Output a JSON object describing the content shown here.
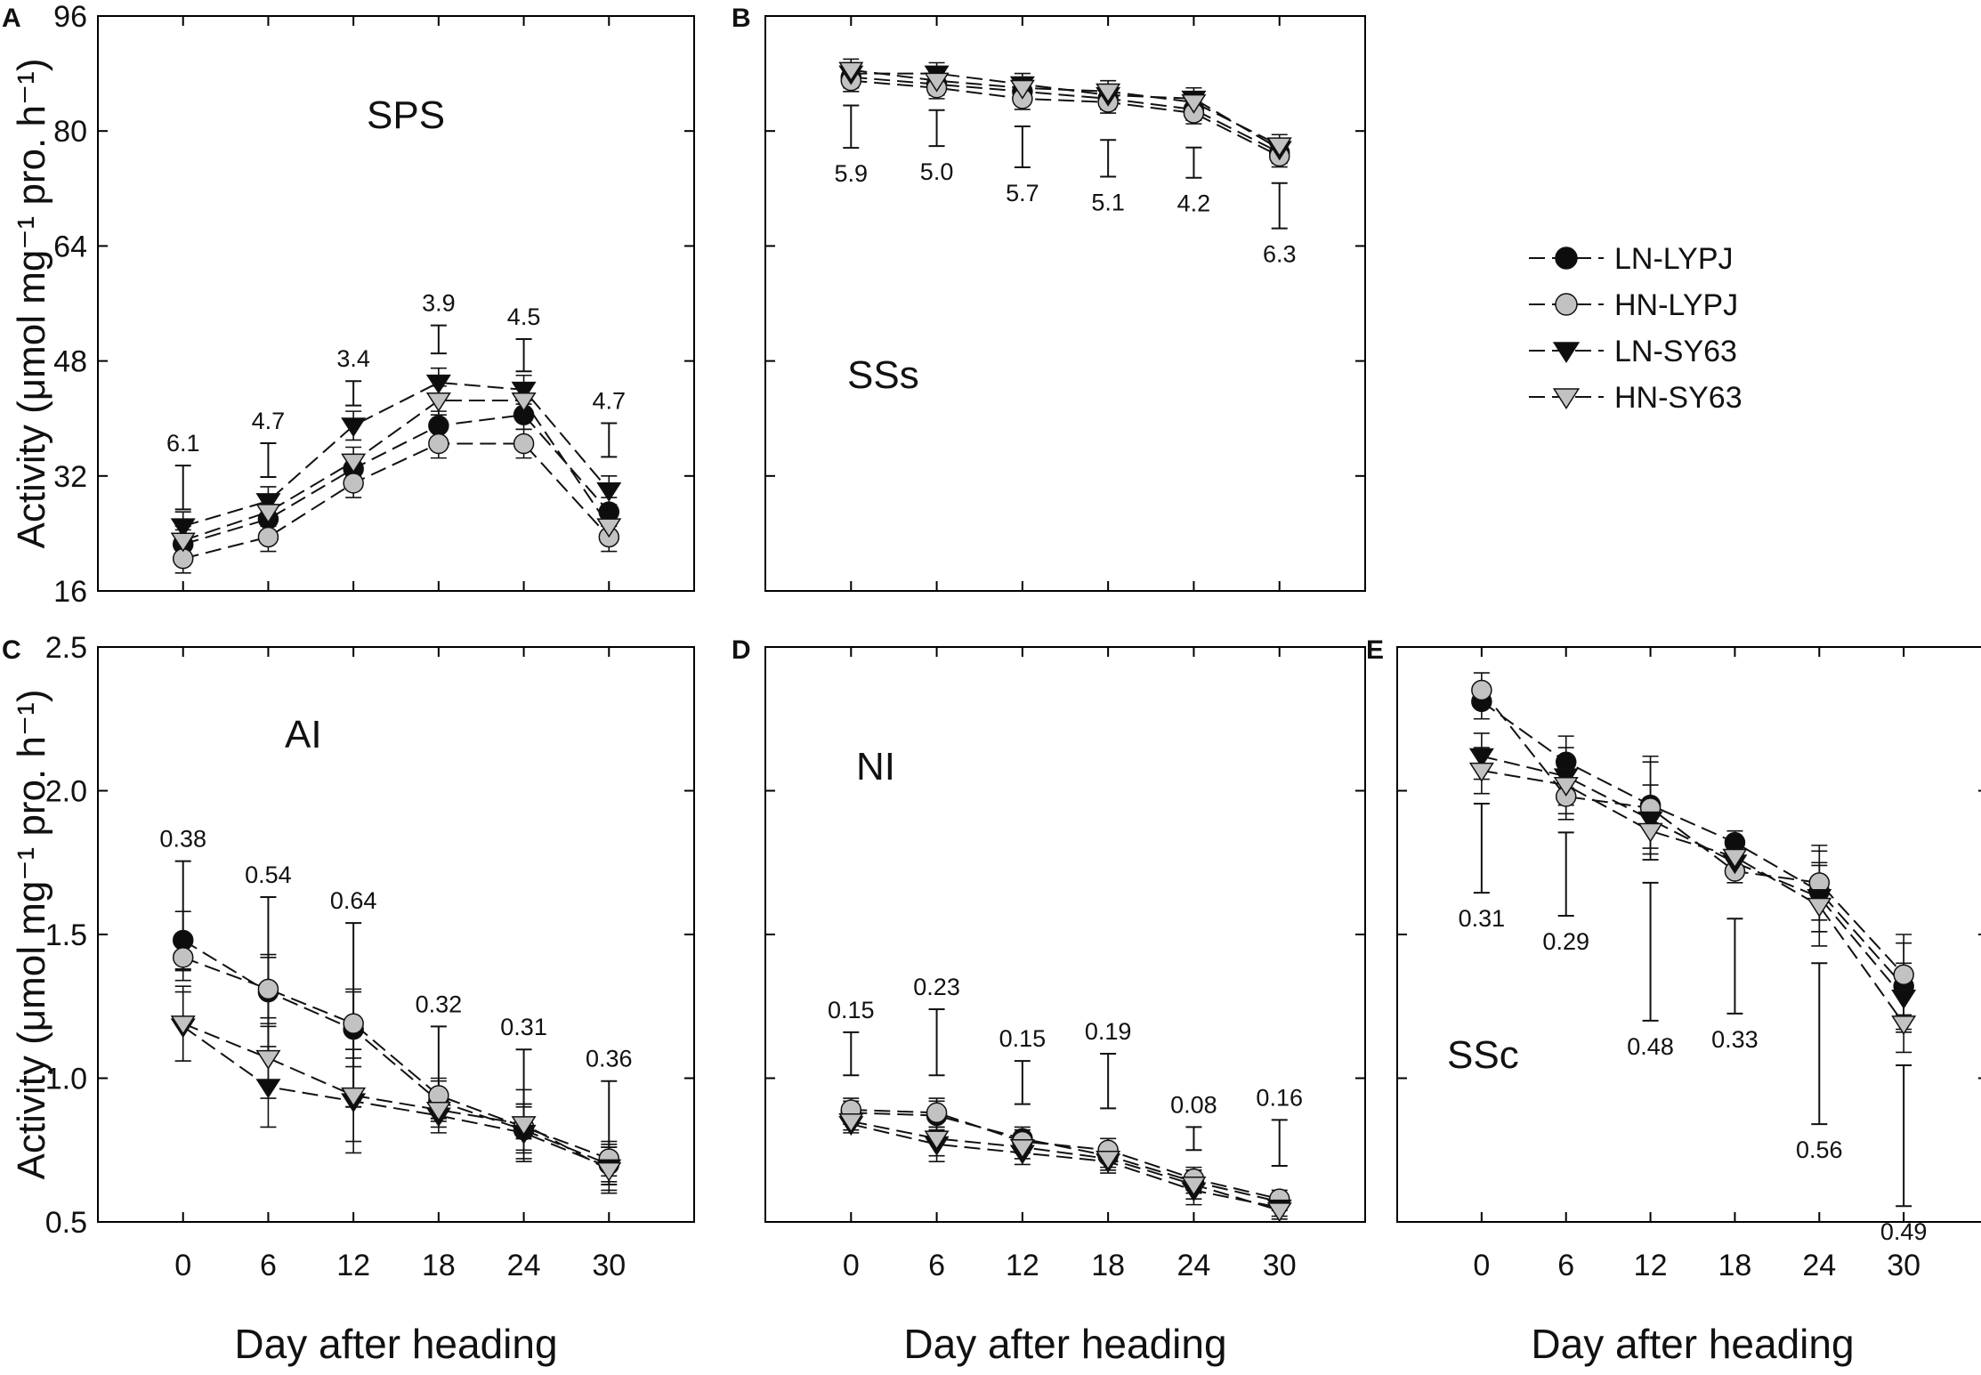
{
  "chart_data": {
    "type": "line",
    "x": [
      0,
      6,
      12,
      18,
      24,
      30
    ],
    "xlabel": "Day after heading",
    "ylabel": "Activity (μmol mg⁻¹ pro. h⁻¹)",
    "legend": {
      "placement": "right of top row",
      "entries": [
        {
          "name": "LN-LYPJ",
          "marker": "circle",
          "color": "#0d0d0d"
        },
        {
          "name": "HN-LYPJ",
          "marker": "circle",
          "color": "#c2c2c2"
        },
        {
          "name": "LN-SY63",
          "marker": "triangle-down",
          "color": "#0d0d0d"
        },
        {
          "name": "HN-SY63",
          "marker": "triangle-down",
          "color": "#c2c2c2"
        }
      ]
    },
    "panels": [
      {
        "letter": "A",
        "label": "SPS",
        "ylim": [
          16,
          96
        ],
        "yticks": [
          16,
          32,
          48,
          64,
          80,
          96
        ],
        "ytick_labels": [
          "16",
          "32",
          "48",
          "64",
          "80",
          "96"
        ],
        "show_xticklabels": false,
        "show_yticklabels": true,
        "show_xlabel": false,
        "show_ylabel": true,
        "series": [
          {
            "name": "LN-LYPJ",
            "values": [
              22.5,
              26,
              33,
              39,
              40.5,
              27
            ]
          },
          {
            "name": "HN-LYPJ",
            "values": [
              20.5,
              23.5,
              31,
              36.5,
              36.5,
              23.5
            ]
          },
          {
            "name": "LN-SY63",
            "values": [
              25,
              28.5,
              39,
              45,
              44,
              30
            ]
          },
          {
            "name": "HN-SY63",
            "values": [
              23,
              27,
              34,
              42.5,
              42.5,
              25
            ]
          }
        ],
        "errors": [
          [
            2,
            2,
            2,
            2,
            2,
            2
          ],
          [
            2,
            2,
            2,
            2,
            2,
            2
          ],
          [
            2,
            2,
            2,
            2,
            2,
            2
          ],
          [
            2,
            2,
            2,
            2,
            2,
            2
          ]
        ],
        "lsd": {
          "labels": [
            "6.1",
            "4.7",
            "3.4",
            "3.9",
            "4.5",
            "4.7"
          ],
          "halves": [
            3.05,
            2.35,
            1.7,
            1.95,
            2.25,
            2.35
          ],
          "centers": [
            30.4,
            34.2,
            43.5,
            51,
            48.8,
            37
          ]
        }
      },
      {
        "letter": "B",
        "label": "SSs",
        "ylim": [
          16,
          96
        ],
        "yticks": [
          16,
          32,
          48,
          64,
          80,
          96
        ],
        "ytick_labels": [
          "16",
          "32",
          "48",
          "64",
          "80",
          "96"
        ],
        "show_xticklabels": false,
        "show_yticklabels": false,
        "show_xlabel": false,
        "show_ylabel": false,
        "series": [
          {
            "name": "LN-LYPJ",
            "values": [
              87.5,
              86.5,
              85.5,
              84.5,
              83,
              77
            ]
          },
          {
            "name": "HN-LYPJ",
            "values": [
              87,
              86,
              84.5,
              84,
              82.5,
              76.5
            ]
          },
          {
            "name": "LN-SY63",
            "values": [
              88,
              88,
              86.5,
              85,
              84.5,
              77.5
            ]
          },
          {
            "name": "HN-SY63",
            "values": [
              88.5,
              87,
              86,
              85.5,
              84,
              78
            ]
          }
        ],
        "errors": [
          [
            1.5,
            1.5,
            1.5,
            1.5,
            1.5,
            1.5
          ],
          [
            1.5,
            1.5,
            1.5,
            1.5,
            1.5,
            1.5
          ],
          [
            1.5,
            1.5,
            1.5,
            1.5,
            1.5,
            1.5
          ],
          [
            1.5,
            1.5,
            1.5,
            1.5,
            1.5,
            1.5
          ]
        ],
        "lsd": {
          "labels": [
            "5.9",
            "5.0",
            "5.7",
            "5.1",
            "4.2",
            "6.3"
          ],
          "halves": [
            2.95,
            2.5,
            2.85,
            2.55,
            2.1,
            3.15
          ],
          "centers": [
            80.6,
            80.4,
            77.8,
            76.2,
            75.6,
            69.6
          ]
        }
      },
      {
        "letter": "C",
        "label": "AI",
        "ylim": [
          0.5,
          2.5
        ],
        "yticks": [
          0.5,
          1.0,
          1.5,
          2.0,
          2.5
        ],
        "ytick_labels": [
          "0.5",
          "1.0",
          "1.5",
          "2.0",
          "2.5"
        ],
        "show_xticklabels": true,
        "show_yticklabels": true,
        "show_xlabel": true,
        "show_ylabel": true,
        "series": [
          {
            "name": "LN-LYPJ",
            "values": [
              1.48,
              1.3,
              1.17,
              0.92,
              0.82,
              0.7
            ]
          },
          {
            "name": "HN-LYPJ",
            "values": [
              1.42,
              1.31,
              1.19,
              0.94,
              0.83,
              0.72
            ]
          },
          {
            "name": "LN-SY63",
            "values": [
              1.18,
              0.97,
              0.92,
              0.87,
              0.81,
              0.69
            ]
          },
          {
            "name": "HN-SY63",
            "values": [
              1.19,
              1.07,
              0.94,
              0.89,
              0.84,
              0.68
            ]
          }
        ],
        "errors": [
          [
            0.1,
            0.12,
            0.13,
            0.07,
            0.08,
            0.06
          ],
          [
            0.08,
            0.12,
            0.12,
            0.06,
            0.08,
            0.06
          ],
          [
            0.12,
            0.14,
            0.18,
            0.06,
            0.1,
            0.08
          ],
          [
            0.13,
            0.14,
            0.16,
            0.06,
            0.12,
            0.08
          ]
        ],
        "lsd": {
          "labels": [
            "0.38",
            "0.54",
            "0.64",
            "0.32",
            "0.31",
            "0.36"
          ],
          "halves": [
            0.19,
            0.27,
            0.32,
            0.16,
            0.155,
            0.18
          ],
          "centers": [
            1.565,
            1.36,
            1.22,
            1.02,
            0.945,
            0.81
          ]
        }
      },
      {
        "letter": "D",
        "label": "NI",
        "ylim": [
          0.5,
          2.5
        ],
        "yticks": [
          0.5,
          1.0,
          1.5,
          2.0,
          2.5
        ],
        "ytick_labels": [
          "0.5",
          "1.0",
          "1.5",
          "2.0",
          "2.5"
        ],
        "show_xticklabels": true,
        "show_yticklabels": false,
        "show_xlabel": true,
        "show_ylabel": false,
        "series": [
          {
            "name": "LN-LYPJ",
            "values": [
              0.88,
              0.87,
              0.79,
              0.73,
              0.64,
              0.57
            ]
          },
          {
            "name": "HN-LYPJ",
            "values": [
              0.89,
              0.88,
              0.78,
              0.75,
              0.65,
              0.58
            ]
          },
          {
            "name": "LN-SY63",
            "values": [
              0.84,
              0.77,
              0.74,
              0.71,
              0.61,
              0.55
            ]
          },
          {
            "name": "HN-SY63",
            "values": [
              0.85,
              0.79,
              0.76,
              0.72,
              0.63,
              0.54
            ]
          }
        ],
        "errors": [
          [
            0.04,
            0.05,
            0.04,
            0.04,
            0.04,
            0.03
          ],
          [
            0.04,
            0.05,
            0.04,
            0.04,
            0.04,
            0.03
          ],
          [
            0.03,
            0.06,
            0.04,
            0.04,
            0.05,
            0.03
          ],
          [
            0.03,
            0.06,
            0.04,
            0.04,
            0.05,
            0.03
          ]
        ],
        "lsd": {
          "labels": [
            "0.15",
            "0.23",
            "0.15",
            "0.19",
            "0.08",
            "0.16"
          ],
          "halves": [
            0.075,
            0.115,
            0.075,
            0.095,
            0.04,
            0.08
          ],
          "centers": [
            1.085,
            1.125,
            0.985,
            0.99,
            0.79,
            0.775
          ]
        }
      },
      {
        "letter": "E",
        "label": "SSc",
        "ylim": [
          0.5,
          2.5
        ],
        "yticks": [
          0.5,
          1.0,
          1.5,
          2.0,
          2.5
        ],
        "ytick_labels": [
          "0.5",
          "1.0",
          "1.5",
          "2.0",
          "2.5"
        ],
        "show_xticklabels": true,
        "show_yticklabels": false,
        "show_xlabel": true,
        "show_ylabel": false,
        "series": [
          {
            "name": "LN-LYPJ",
            "values": [
              2.31,
              2.1,
              1.95,
              1.82,
              1.65,
              1.32
            ]
          },
          {
            "name": "HN-LYPJ",
            "values": [
              2.35,
              1.98,
              1.94,
              1.72,
              1.68,
              1.36
            ]
          },
          {
            "name": "LN-SY63",
            "values": [
              2.12,
              2.05,
              1.9,
              1.75,
              1.63,
              1.28
            ]
          },
          {
            "name": "HN-SY63",
            "values": [
              2.07,
              2.02,
              1.86,
              1.77,
              1.6,
              1.19
            ]
          }
        ],
        "errors": [
          [
            0.06,
            0.09,
            0.15,
            0.04,
            0.14,
            0.15
          ],
          [
            0.06,
            0.08,
            0.18,
            0.04,
            0.13,
            0.14
          ],
          [
            0.08,
            0.1,
            0.12,
            0.05,
            0.12,
            0.12
          ],
          [
            0.08,
            0.1,
            0.1,
            0.05,
            0.14,
            0.1
          ]
        ],
        "lsd": {
          "labels": [
            "0.31",
            "0.29",
            "0.48",
            "0.33",
            "0.56",
            "0.49"
          ],
          "halves": [
            0.155,
            0.145,
            0.24,
            0.165,
            0.28,
            0.245
          ],
          "centers": [
            1.8,
            1.71,
            1.44,
            1.39,
            1.12,
            0.8
          ]
        }
      }
    ]
  }
}
